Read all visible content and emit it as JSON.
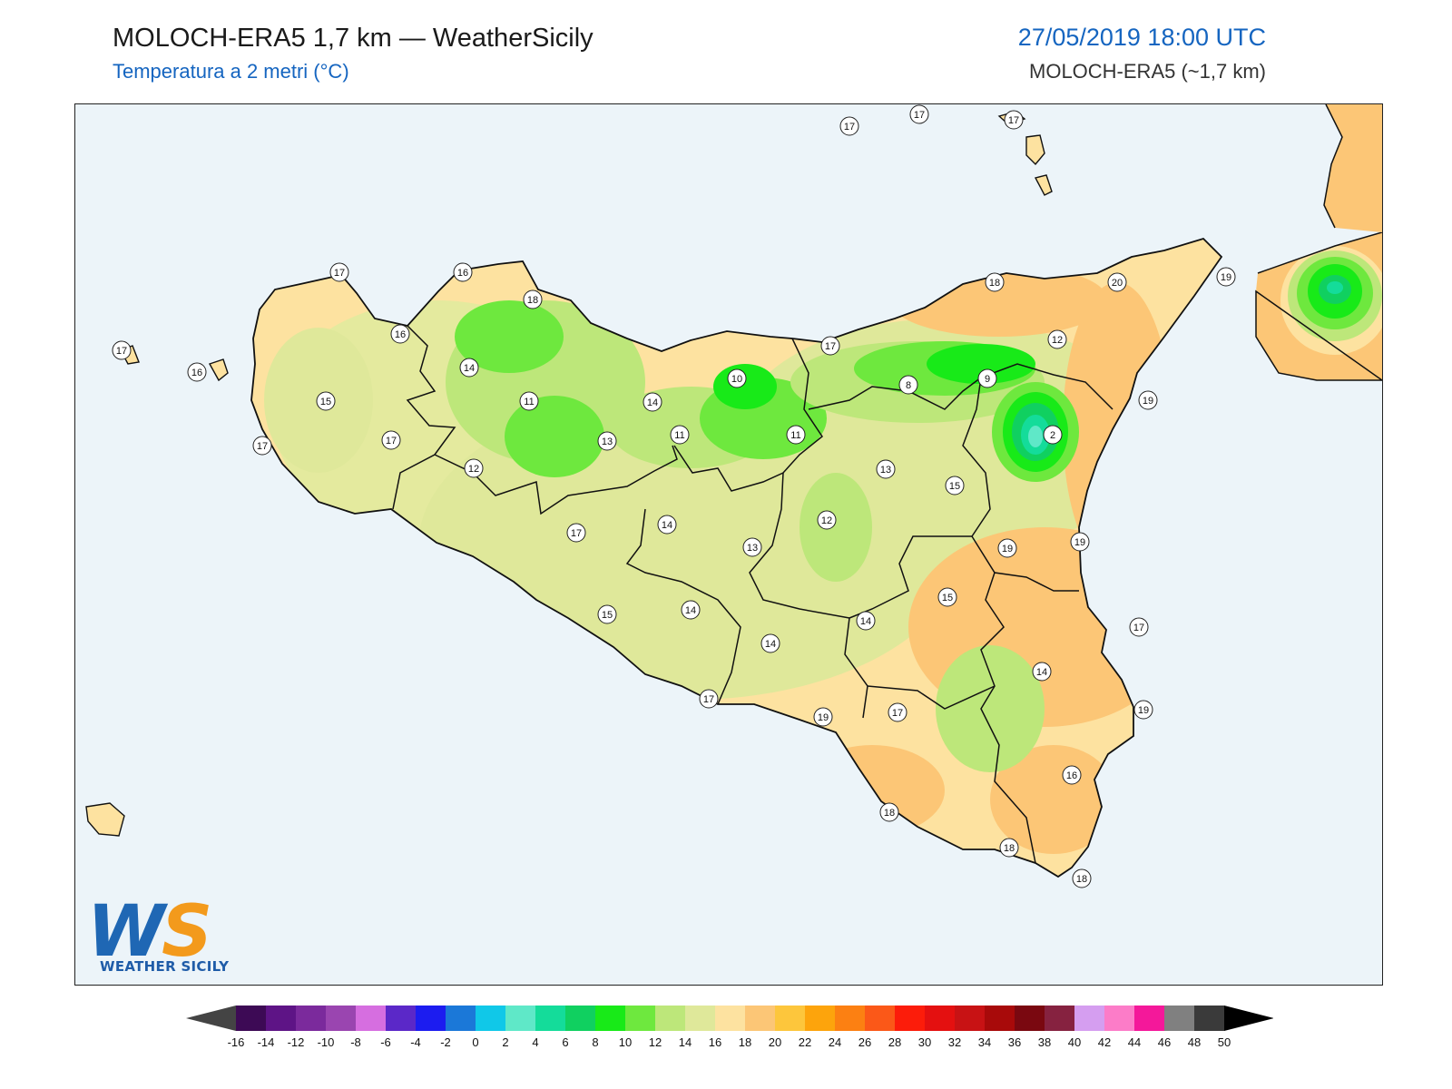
{
  "header": {
    "title": "MOLOCH-ERA5 1,7 km — WeatherSicily",
    "subtitle": "Temperatura a 2 metri (°C)",
    "datetime": "27/05/2019 18:00 UTC",
    "model": "MOLOCH-ERA5 (~1,7 km)"
  },
  "logo": {
    "big": "WS",
    "text": "WEATHER SICILY"
  },
  "colors": {
    "sea": "#ecf4f9",
    "land_base": "#e0eaa0",
    "coast": "#111111"
  },
  "station_labels": [
    "17",
    "17",
    "17",
    "17",
    "16",
    "18",
    "18",
    "20",
    "19",
    "17",
    "16",
    "16",
    "14",
    "15",
    "17",
    "17",
    "11",
    "14",
    "12",
    "13",
    "10",
    "11",
    "11",
    "8",
    "9",
    "12",
    "17",
    "19",
    "2",
    "13",
    "15",
    "14",
    "12",
    "13",
    "17",
    "14",
    "19",
    "19",
    "15",
    "14",
    "14",
    "15",
    "17",
    "19",
    "17",
    "14",
    "19",
    "16",
    "18",
    "18",
    "18",
    "17"
  ],
  "colorbar": {
    "labels": [
      "-16",
      "-14",
      "-12",
      "-10",
      "-8",
      "-6",
      "-4",
      "-2",
      "0",
      "2",
      "4",
      "6",
      "8",
      "10",
      "12",
      "14",
      "16",
      "18",
      "20",
      "22",
      "24",
      "26",
      "28",
      "30",
      "32",
      "34",
      "36",
      "38",
      "40",
      "42",
      "44",
      "46",
      "48",
      "50"
    ],
    "colors": [
      "#3d0a55",
      "#5e1486",
      "#7b2a9c",
      "#9a45b0",
      "#d66ee0",
      "#5b28c8",
      "#1c1cf0",
      "#1b78d8",
      "#10c8e8",
      "#5fe8c8",
      "#14dc9a",
      "#10d060",
      "#18ea18",
      "#6ee83e",
      "#bde77a",
      "#dfe89a",
      "#fde2a0",
      "#fcc676",
      "#fdc63c",
      "#fda40c",
      "#fc8012",
      "#fb5818",
      "#fc1c0a",
      "#e41010",
      "#c81214",
      "#a80a0a",
      "#7a0810",
      "#862240",
      "#d59ef0",
      "#fc7cc8",
      "#f4189a",
      "#808080",
      "#3a3a3a"
    ]
  }
}
